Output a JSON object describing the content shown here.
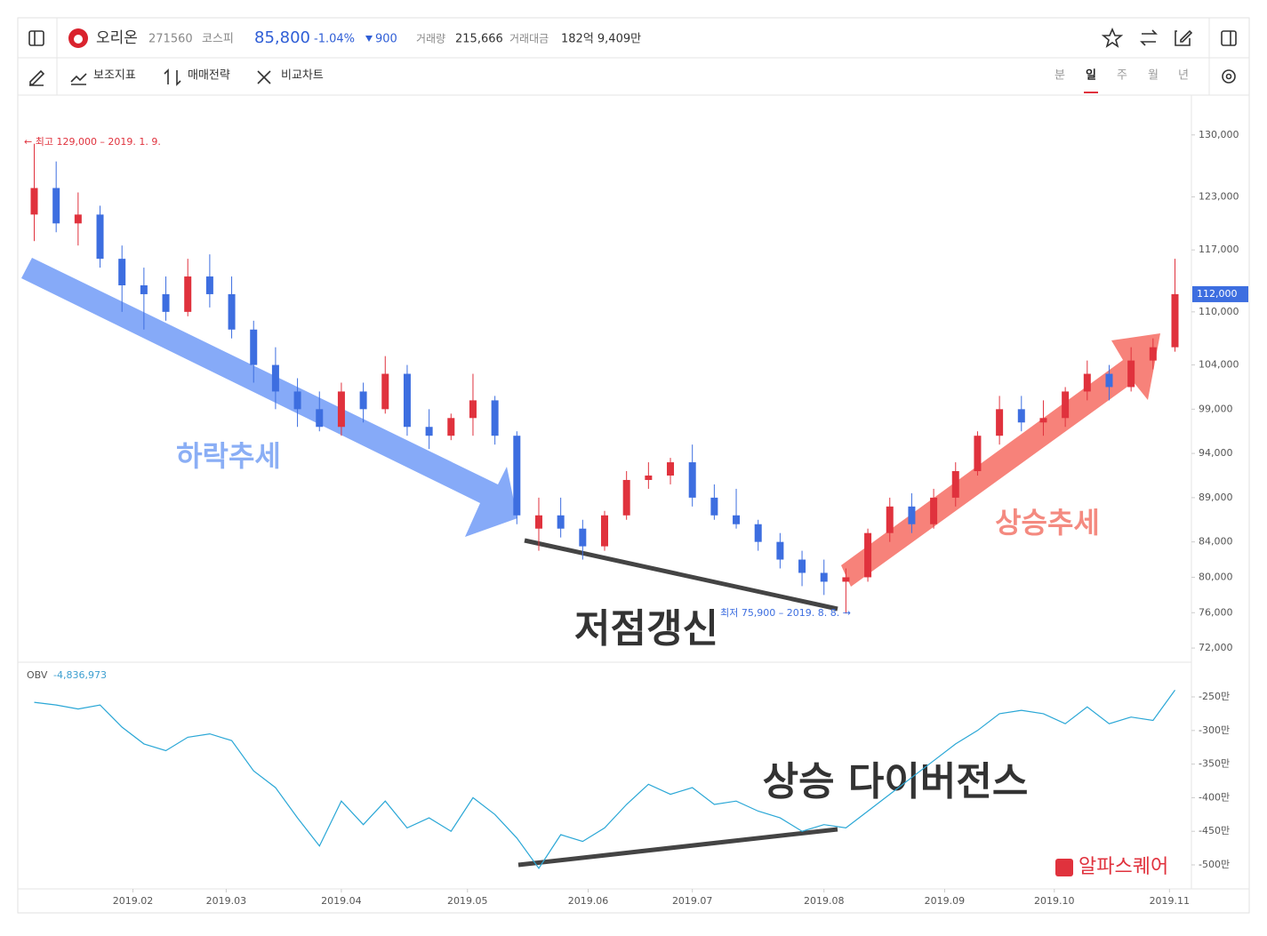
{
  "header": {
    "name": "오리온",
    "code": "271560",
    "market": "코스피",
    "price": "85,800",
    "change_pct": "-1.04%",
    "change": "900",
    "volume_label": "거래량",
    "volume": "215,666",
    "amount_label": "거래대금",
    "amount": "182억 9,409만"
  },
  "toolbar": {
    "tools": [
      "보조지표",
      "매매전략",
      "비교차트"
    ],
    "periods": [
      "분",
      "일",
      "주",
      "월",
      "년"
    ],
    "active_period": 1
  },
  "annotations": {
    "down_trend": "하락추세",
    "up_trend": "상승추세",
    "new_low": "저점갱신",
    "divergence": "상승 다이버전스",
    "watermark": "알파스퀘어"
  },
  "chart_data": [
    {
      "type": "candlestick",
      "up_color": "#e0323d",
      "down_color": "#3d6ee0",
      "x": [
        0,
        4,
        8,
        12,
        16,
        20,
        24,
        28,
        32,
        36,
        40,
        44,
        48,
        52,
        56,
        60,
        64,
        68,
        72,
        76,
        80,
        84,
        88,
        92,
        96,
        100,
        104,
        108,
        112,
        116,
        120,
        124,
        128,
        132,
        136,
        140,
        144,
        148,
        152,
        156,
        160,
        164,
        168,
        172,
        176,
        180,
        184,
        188,
        192,
        196,
        200,
        204,
        208
      ],
      "open": [
        121000,
        124000,
        120000,
        121000,
        116000,
        113000,
        112000,
        110000,
        114000,
        112000,
        108000,
        104000,
        101000,
        99000,
        97000,
        101000,
        99000,
        103000,
        97000,
        96000,
        98000,
        100000,
        96000,
        85500,
        87000,
        85500,
        83500,
        87000,
        91000,
        91500,
        93000,
        89000,
        87000,
        86000,
        84000,
        82000,
        80500,
        79500,
        80000,
        85000,
        88000,
        86000,
        89000,
        92000,
        96000,
        99000,
        97500,
        98000,
        101000,
        103000,
        101500,
        104500,
        106000
      ],
      "high": [
        129000,
        127000,
        123500,
        122000,
        117500,
        115000,
        114000,
        116000,
        116500,
        114000,
        109000,
        106000,
        102500,
        101000,
        102000,
        102000,
        105000,
        104000,
        99000,
        98500,
        103000,
        100500,
        96500,
        89000,
        89000,
        86500,
        87500,
        92000,
        93000,
        93500,
        95000,
        90500,
        90000,
        86500,
        85000,
        83000,
        82000,
        81000,
        85500,
        89000,
        89500,
        90000,
        93000,
        96500,
        100500,
        100500,
        100000,
        101500,
        104500,
        104000,
        106000,
        107000,
        116000
      ],
      "low": [
        118000,
        119000,
        117500,
        115000,
        110000,
        108000,
        109000,
        109500,
        110500,
        107000,
        102000,
        99000,
        97000,
        96500,
        96000,
        97500,
        98500,
        96000,
        94500,
        95500,
        96000,
        95000,
        86000,
        83000,
        84500,
        82000,
        83000,
        86500,
        90000,
        90500,
        88000,
        86500,
        85500,
        83000,
        81000,
        79000,
        78000,
        75900,
        79500,
        84000,
        85000,
        85500,
        88000,
        91500,
        95000,
        96500,
        96000,
        97000,
        100000,
        100000,
        101000,
        103500,
        105500
      ],
      "close": [
        124000,
        120000,
        121000,
        116000,
        113000,
        112000,
        110000,
        114000,
        112000,
        108000,
        104000,
        101000,
        99000,
        97000,
        101000,
        99000,
        103000,
        97000,
        96000,
        98000,
        100000,
        96000,
        87000,
        87000,
        85500,
        83500,
        87000,
        91000,
        91500,
        93000,
        89000,
        87000,
        86000,
        84000,
        82000,
        80500,
        79500,
        80000,
        85000,
        88000,
        86000,
        89000,
        92000,
        96000,
        99000,
        97500,
        98000,
        101000,
        103000,
        101500,
        104500,
        106000,
        112000
      ],
      "last_label": "112,000",
      "high_label": "← 최고 129,000 – 2019. 1. 9.",
      "low_label": "최저 75,900 – 2019. 8. 8. →",
      "xlim": [
        -3,
        211
      ],
      "ylim": [
        70400,
        134500
      ],
      "yticks": [
        {
          "value": 130000,
          "label": "130,000"
        },
        {
          "value": 123000,
          "label": "123,000"
        },
        {
          "value": 117000,
          "label": "117,000"
        },
        {
          "value": 110000,
          "label": "110,000"
        },
        {
          "value": 104000,
          "label": "104,000"
        },
        {
          "value": 99000,
          "label": "99,000"
        },
        {
          "value": 94000,
          "label": "94,000"
        },
        {
          "value": 89000,
          "label": "89,000"
        },
        {
          "value": 84000,
          "label": "84,000"
        },
        {
          "value": 80000,
          "label": "80,000"
        },
        {
          "value": 76000,
          "label": "76,000"
        },
        {
          "value": 72000,
          "label": "72,000"
        }
      ]
    },
    {
      "type": "line",
      "label": "OBV",
      "value_label": "-4,836,973",
      "color": "#2aa7d6",
      "x": [
        0,
        4,
        8,
        12,
        16,
        20,
        24,
        28,
        32,
        36,
        40,
        44,
        48,
        52,
        56,
        60,
        64,
        68,
        72,
        76,
        80,
        84,
        88,
        92,
        96,
        100,
        104,
        108,
        112,
        116,
        120,
        124,
        128,
        132,
        136,
        140,
        144,
        148,
        152,
        156,
        160,
        164,
        168,
        172,
        176,
        180,
        184,
        188,
        192,
        196,
        200,
        204,
        208
      ],
      "values": [
        -258,
        -262,
        -268,
        -262,
        -295,
        -320,
        -330,
        -310,
        -305,
        -315,
        -360,
        -385,
        -430,
        -472,
        -405,
        -440,
        -405,
        -445,
        -430,
        -450,
        -400,
        -425,
        -460,
        -505,
        -455,
        -465,
        -445,
        -410,
        -380,
        -395,
        -385,
        -410,
        -405,
        -420,
        -430,
        -450,
        -440,
        -445,
        -420,
        -395,
        -370,
        -345,
        -320,
        -300,
        -275,
        -270,
        -275,
        -290,
        -265,
        -290,
        -280,
        -285,
        -240
      ],
      "xlim": [
        -3,
        211
      ],
      "ylim": [
        -535.7,
        -198.4
      ],
      "yticks": [
        {
          "value": -250,
          "label": "-250만"
        },
        {
          "value": -300,
          "label": "-300만"
        },
        {
          "value": -350,
          "label": "-350만"
        },
        {
          "value": -400,
          "label": "-400만"
        },
        {
          "value": -450,
          "label": "-450만"
        },
        {
          "value": -500,
          "label": "-500만"
        }
      ],
      "xticks": [
        {
          "value": 18,
          "label": "2019.02"
        },
        {
          "value": 35,
          "label": "2019.03"
        },
        {
          "value": 56,
          "label": "2019.04"
        },
        {
          "value": 79,
          "label": "2019.05"
        },
        {
          "value": 101,
          "label": "2019.06"
        },
        {
          "value": 120,
          "label": "2019.07"
        },
        {
          "value": 144,
          "label": "2019.08"
        },
        {
          "value": 166,
          "label": "2019.09"
        },
        {
          "value": 186,
          "label": "2019.10"
        },
        {
          "value": 207,
          "label": "2019.11"
        }
      ]
    }
  ]
}
